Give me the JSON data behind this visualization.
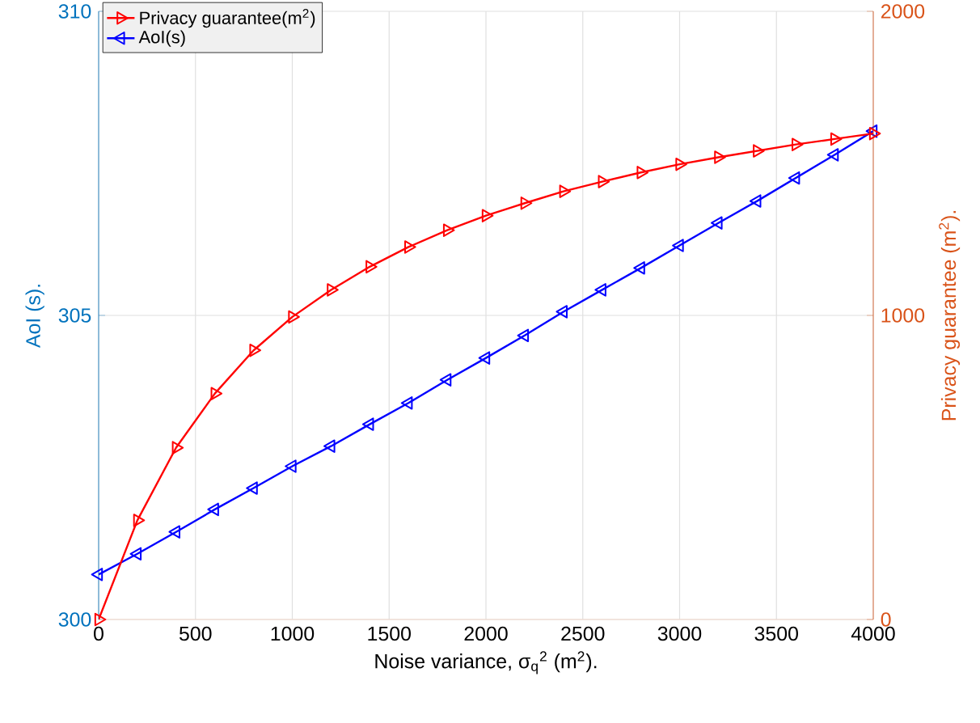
{
  "chart_data": {
    "type": "line",
    "xlabel": "Noise variance, σ$_{q}$$^{2}$ (m$^{2}$).",
    "ylabel": "AoI (s).",
    "y2label": "Privacy guarantee (m$^{2}$).",
    "x": [
      0,
      200,
      400,
      600,
      800,
      1000,
      1200,
      1400,
      1600,
      1800,
      2000,
      2200,
      2400,
      2600,
      2800,
      3000,
      3200,
      3400,
      3600,
      3800,
      4000
    ],
    "series": [
      {
        "name": "Privacy guarantee(m$^{2}$)",
        "color": "#ff0000",
        "axis": "y2",
        "marker": "triangle",
        "values": [
          0,
          326,
          565,
          743,
          885,
          995,
          1084,
          1160,
          1225,
          1280,
          1328,
          1369,
          1408,
          1440,
          1470,
          1497,
          1520,
          1541,
          1562,
          1580,
          1598
        ]
      },
      {
        "name": "AoI(s)",
        "color": "#0000ff",
        "axis": "y",
        "marker": "triangle",
        "values": [
          300.74,
          301.08,
          301.44,
          301.81,
          302.16,
          302.52,
          302.85,
          303.21,
          303.56,
          303.94,
          304.3,
          304.67,
          305.06,
          305.42,
          305.78,
          306.15,
          306.52,
          306.88,
          307.26,
          307.64,
          308.03
        ]
      }
    ],
    "xlim": [
      0,
      4000
    ],
    "xticks": [
      0,
      500,
      1000,
      1500,
      2000,
      2500,
      3000,
      3500,
      4000
    ],
    "ylim": [
      300,
      310
    ],
    "yticks": [
      300,
      305,
      310
    ],
    "y2lim": [
      0,
      2000
    ],
    "y2ticks": [
      0,
      1000,
      2000
    ],
    "grid": true,
    "legend": "top left",
    "line_style": "solid"
  }
}
